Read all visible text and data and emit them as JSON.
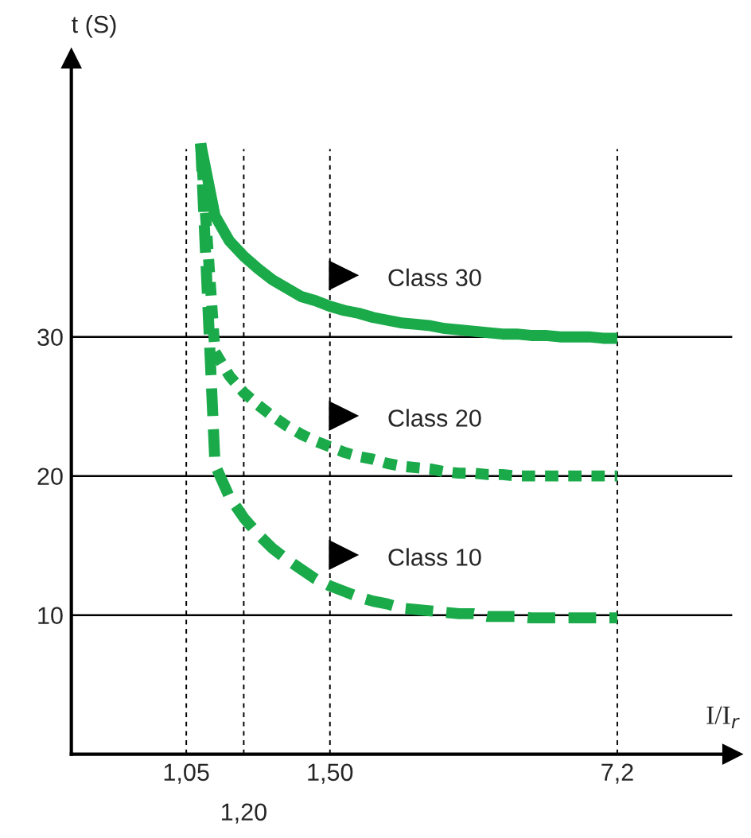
{
  "chart_data": {
    "type": "line",
    "ylabel": "t (S)",
    "xlabel": "I/I$_{r}$",
    "ylim": [
      0,
      50
    ],
    "yticks": [
      10,
      20,
      30
    ],
    "grid": true,
    "legend": false,
    "categories": [
      null,
      null,
      null,
      null,
      null,
      null,
      null,
      null,
      "1,05",
      null,
      null,
      null,
      "1,20",
      null,
      null,
      null,
      null,
      null,
      "1,50",
      null,
      null,
      null,
      null,
      null,
      null,
      null,
      null,
      null,
      null,
      null,
      null,
      null,
      null,
      null,
      null,
      null,
      null,
      null,
      "7,2",
      null,
      null,
      null,
      null,
      null,
      null,
      null
    ],
    "series": [
      {
        "name": "Class 30",
        "color": "#1aaa4a",
        "line_style": "solid",
        "values": [
          null,
          null,
          null,
          null,
          null,
          null,
          null,
          null,
          null,
          43.9,
          38.7,
          36.9,
          35.8,
          34.9,
          34.1,
          33.5,
          32.9,
          32.6,
          32.2,
          31.9,
          31.7,
          31.4,
          31.2,
          31.0,
          30.9,
          30.8,
          30.6,
          30.5,
          30.4,
          30.3,
          30.2,
          30.2,
          30.1,
          30.1,
          30.0,
          30.0,
          30.0,
          29.9,
          29.9,
          null,
          null,
          null,
          null,
          null,
          null,
          null
        ]
      },
      {
        "name": "Class 20",
        "color": "#1aaa4a",
        "line_style": "dotted",
        "values": [
          null,
          null,
          null,
          null,
          null,
          null,
          null,
          null,
          null,
          43.9,
          28.9,
          27.2,
          26.0,
          25.1,
          24.3,
          23.6,
          23.0,
          22.5,
          22.1,
          21.7,
          21.4,
          21.2,
          20.9,
          20.7,
          20.6,
          20.5,
          20.3,
          20.2,
          20.2,
          20.1,
          20.1,
          20.0,
          20.0,
          20.0,
          20.0,
          20.0,
          20.0,
          20.0,
          20.0,
          null,
          null,
          null,
          null,
          null,
          null,
          null
        ]
      },
      {
        "name": "Class 10",
        "color": "#1aaa4a",
        "line_style": "dashed",
        "values": [
          null,
          null,
          null,
          null,
          null,
          null,
          null,
          null,
          null,
          43.9,
          20.8,
          18.5,
          17.0,
          15.8,
          14.8,
          14.0,
          13.3,
          12.6,
          12.1,
          11.7,
          11.3,
          11.0,
          10.8,
          10.5,
          10.4,
          10.3,
          10.2,
          10.1,
          10.1,
          9.9,
          9.9,
          9.9,
          9.8,
          9.8,
          9.8,
          9.8,
          9.8,
          9.8,
          9.8,
          null,
          null,
          null,
          null,
          null,
          null,
          null
        ]
      }
    ]
  }
}
